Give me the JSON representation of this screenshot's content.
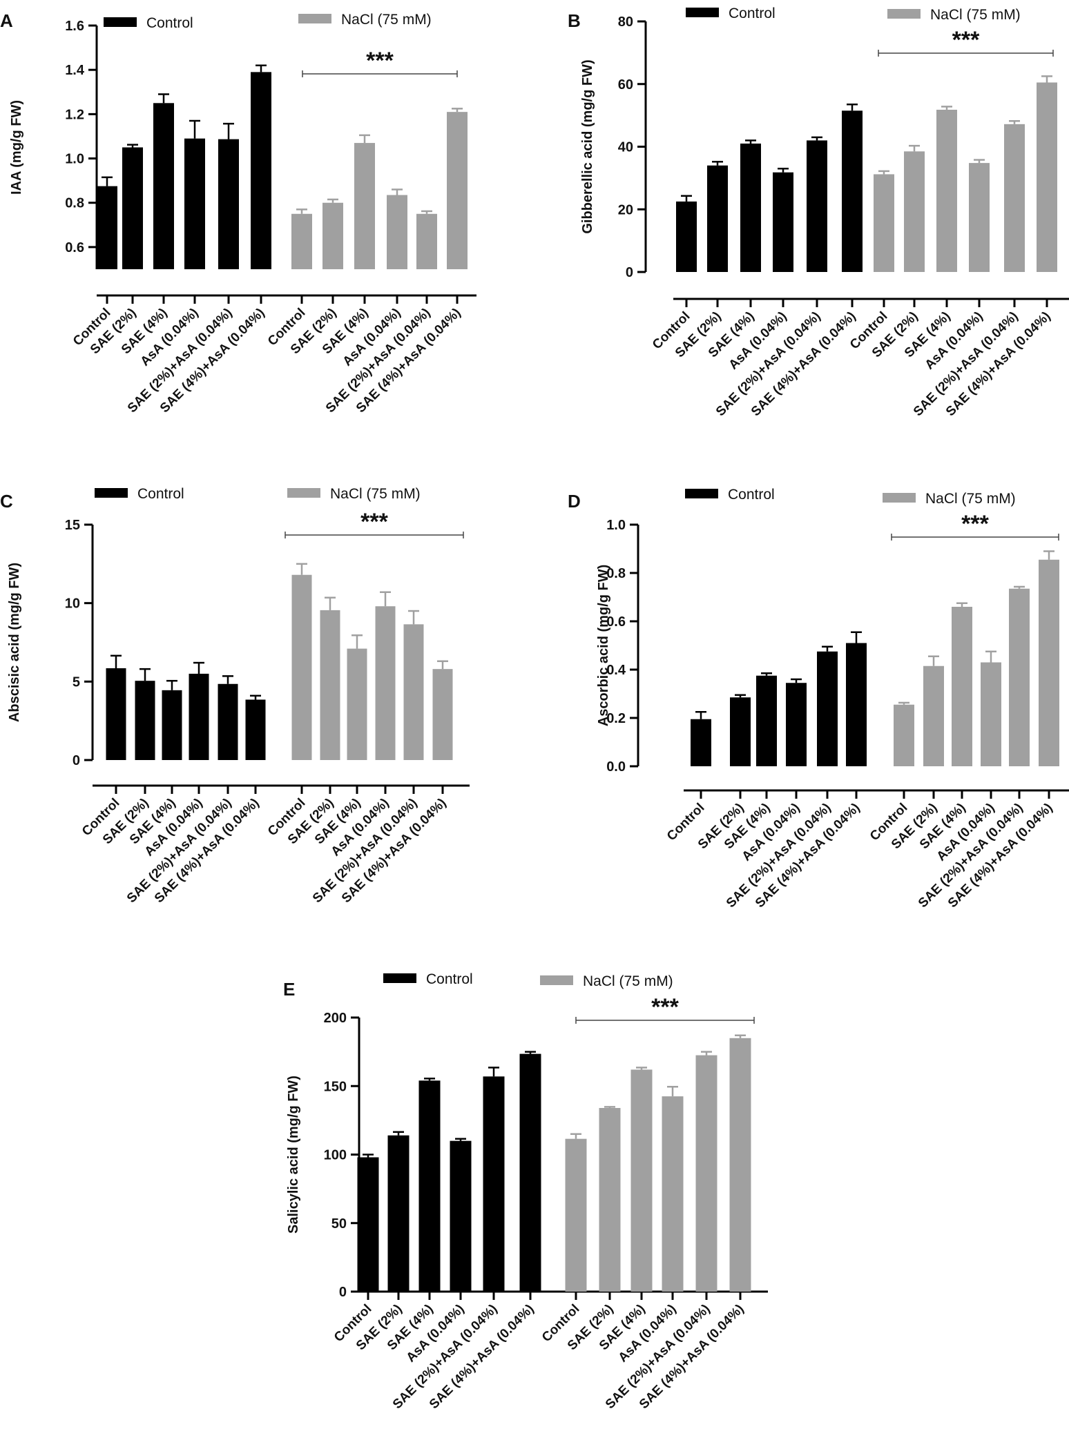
{
  "categories": [
    "Control",
    "SAE (2%)",
    "SAE (4%)",
    "AsA (0.04%)",
    "SAE (2%)+AsA (0.04%)",
    "SAE (4%)+AsA (0.04%)"
  ],
  "colors": {
    "control": "#000000",
    "nacl": "#a0a0a0"
  },
  "chart_data": [
    {
      "type": "bar",
      "panel": "A",
      "ylabel": "IAA (mg/g FW)",
      "ylim": [
        0.5,
        1.6
      ],
      "yticks": [
        0.6,
        0.8,
        1.0,
        1.2,
        1.4,
        1.6
      ],
      "ytick_labels": [
        "0.6",
        "0.8",
        "1.0",
        "1.2",
        "1.4",
        "1.6"
      ],
      "legend": [
        "Control",
        "NaCl (75 mM)"
      ],
      "significance": "***",
      "series": [
        {
          "name": "Control",
          "values": [
            0.875,
            1.05,
            1.25,
            1.09,
            1.087,
            1.39
          ],
          "errors": [
            0.04,
            0.012,
            0.04,
            0.08,
            0.07,
            0.03
          ]
        },
        {
          "name": "NaCl (75 mM)",
          "values": [
            0.75,
            0.8,
            1.07,
            0.835,
            0.75,
            1.21
          ],
          "errors": [
            0.02,
            0.015,
            0.035,
            0.025,
            0.012,
            0.015
          ]
        }
      ]
    },
    {
      "type": "bar",
      "panel": "B",
      "ylabel": "Gibberellic acid (mg/g FW)",
      "ylim": [
        0,
        80
      ],
      "yticks": [
        0,
        20,
        40,
        60,
        80
      ],
      "ytick_labels": [
        "0",
        "20",
        "40",
        "60",
        "80"
      ],
      "legend": [
        "Control",
        "NaCl (75 mM)"
      ],
      "significance": "***",
      "series": [
        {
          "name": "Control",
          "values": [
            22.5,
            34.0,
            41.0,
            31.8,
            42.0,
            51.5
          ],
          "errors": [
            1.8,
            1.2,
            1.0,
            1.2,
            1.0,
            2.0
          ]
        },
        {
          "name": "NaCl (75 mM)",
          "values": [
            31.2,
            38.5,
            51.8,
            34.8,
            47.2,
            60.5
          ],
          "errors": [
            1.0,
            1.8,
            1.0,
            1.0,
            1.0,
            2.0
          ]
        }
      ]
    },
    {
      "type": "bar",
      "panel": "C",
      "ylabel": "Abscisic acid (mg/g FW)",
      "ylim": [
        0,
        15
      ],
      "yticks": [
        0,
        5,
        10,
        15
      ],
      "ytick_labels": [
        "0",
        "5",
        "10",
        "15"
      ],
      "legend": [
        "Control",
        "NaCl (75 mM)"
      ],
      "significance": "***",
      "series": [
        {
          "name": "Control",
          "values": [
            5.85,
            5.05,
            4.45,
            5.5,
            4.85,
            3.85
          ],
          "errors": [
            0.8,
            0.75,
            0.6,
            0.7,
            0.5,
            0.25
          ]
        },
        {
          "name": "NaCl (75 mM)",
          "values": [
            11.8,
            9.55,
            7.1,
            9.8,
            8.65,
            5.8
          ],
          "errors": [
            0.7,
            0.8,
            0.85,
            0.9,
            0.85,
            0.5
          ]
        }
      ]
    },
    {
      "type": "bar",
      "panel": "D",
      "ylabel": "Ascorbic acid (mg/g FW)",
      "ylim": [
        0,
        1.0
      ],
      "yticks": [
        0.0,
        0.2,
        0.4,
        0.6,
        0.8,
        1.0
      ],
      "ytick_labels": [
        "0.0",
        "0.2",
        "0.4",
        "0.6",
        "0.8",
        "1.0"
      ],
      "legend": [
        "Control",
        "NaCl (75 mM)"
      ],
      "significance": "***",
      "series": [
        {
          "name": "Control",
          "values": [
            0.195,
            0.285,
            0.375,
            0.345,
            0.475,
            0.51
          ],
          "errors": [
            0.03,
            0.01,
            0.01,
            0.015,
            0.02,
            0.045
          ]
        },
        {
          "name": "NaCl (75 mM)",
          "values": [
            0.255,
            0.415,
            0.66,
            0.43,
            0.735,
            0.855
          ],
          "errors": [
            0.008,
            0.04,
            0.015,
            0.045,
            0.008,
            0.035
          ]
        }
      ]
    },
    {
      "type": "bar",
      "panel": "E",
      "ylabel": "Salicylic acid (mg/g FW)",
      "ylim": [
        0,
        200
      ],
      "yticks": [
        0,
        50,
        100,
        150,
        200
      ],
      "ytick_labels": [
        "0",
        "50",
        "100",
        "150",
        "200"
      ],
      "legend": [
        "Control",
        "NaCl (75 mM)"
      ],
      "significance": "***",
      "series": [
        {
          "name": "Control",
          "values": [
            98,
            114,
            154,
            110,
            157,
            173.5
          ],
          "errors": [
            2,
            2.5,
            1.5,
            1.5,
            6.5,
            1.5
          ]
        },
        {
          "name": "NaCl (75 mM)",
          "values": [
            111.5,
            134,
            162,
            142.5,
            172.5,
            185
          ],
          "errors": [
            3.5,
            0.8,
            1.5,
            7,
            2.5,
            2
          ]
        }
      ]
    }
  ]
}
